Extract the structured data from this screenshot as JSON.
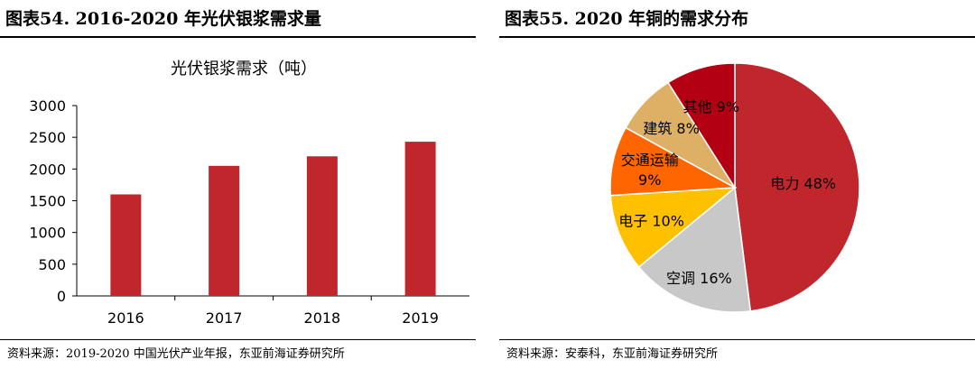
{
  "left_panel": {
    "figure_title": "图表54. 2016-2020 年光伏银浆需求量",
    "source": "资料来源：2019-2020 中国光伏产业年报，东亚前海证券研究所"
  },
  "right_panel": {
    "figure_title": "图表55. 2020 年铜的需求分布",
    "source": "资料来源：安泰科，东亚前海证券研究所"
  },
  "chart_data": [
    {
      "type": "bar",
      "title": "光伏银浆需求（吨）",
      "categories": [
        "2016",
        "2017",
        "2018",
        "2019"
      ],
      "values": [
        1600,
        2050,
        2200,
        2430
      ],
      "ylim": [
        0,
        3000
      ],
      "yticks": [
        0,
        500,
        1000,
        1500,
        2000,
        2500,
        3000
      ],
      "xlabel": "",
      "ylabel": "",
      "grid": false,
      "color": "#C0272D"
    },
    {
      "type": "pie",
      "slices": [
        {
          "label": "电力",
          "text": "电力 48%",
          "value": 48,
          "color": "#C0272D"
        },
        {
          "label": "空调",
          "text": "空调 16%",
          "value": 16,
          "color": "#C8C8C8"
        },
        {
          "label": "电子",
          "text": "电子 10%",
          "value": 10,
          "color": "#FFC000"
        },
        {
          "label": "交通运输",
          "text": "交通运输",
          "text2": "9%",
          "value": 9,
          "color": "#FF6600"
        },
        {
          "label": "建筑",
          "text": "建筑 8%",
          "value": 8,
          "color": "#DDB065"
        },
        {
          "label": "其他",
          "text": "其他 9%",
          "value": 9,
          "color": "#B30012"
        }
      ],
      "legend": "none"
    }
  ]
}
